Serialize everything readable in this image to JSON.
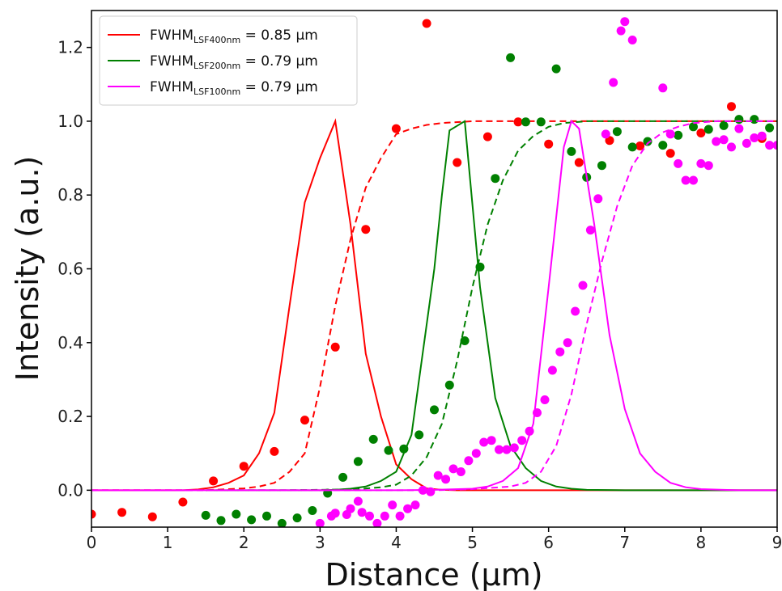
{
  "chart_data": {
    "type": "line",
    "xlabel": "Distance (µm)",
    "ylabel": "Intensity (a.u.)",
    "xlim": [
      0,
      9
    ],
    "ylim": [
      -0.1,
      1.3
    ],
    "xticks": [
      0,
      1,
      2,
      3,
      4,
      5,
      6,
      7,
      8,
      9
    ],
    "yticks": [
      0.0,
      0.2,
      0.4,
      0.6,
      0.8,
      1.0,
      1.2
    ],
    "ytick_labels": [
      "0.0",
      "0.2",
      "0.4",
      "0.6",
      "0.8",
      "1.0",
      "1.2"
    ],
    "grid": false,
    "legend_position": "top-left",
    "legend": [
      {
        "main": "FWHM",
        "sub": "LSF400nm",
        "value": " = 0.85 µm",
        "color": "#ff0000"
      },
      {
        "main": "FWHM",
        "sub": "LSF200nm",
        "value": " = 0.79 µm",
        "color": "#008000"
      },
      {
        "main": "FWHM",
        "sub": "LSF100nm",
        "value": " = 0.79 µm",
        "color": "#ff00ff"
      }
    ],
    "series": [
      {
        "name": "FWHM LSF400nm = 0.85 µm",
        "color": "#ff0000",
        "lsf": {
          "x": [
            0,
            0.2,
            0.4,
            0.6,
            0.8,
            1.0,
            1.2,
            1.4,
            1.6,
            1.8,
            2.0,
            2.2,
            2.4,
            2.6,
            2.8,
            3.0,
            3.2,
            3.4,
            3.6,
            3.8,
            4.0,
            4.2,
            4.4,
            4.6,
            4.8,
            5.0,
            5.5,
            6.0,
            6.5,
            7.0,
            8.0,
            9.0
          ],
          "y": [
            0,
            0,
            0,
            0,
            0,
            0,
            0,
            0.002,
            0.008,
            0.02,
            0.04,
            0.1,
            0.21,
            0.5,
            0.78,
            0.9,
            1.0,
            0.72,
            0.37,
            0.2,
            0.07,
            0.03,
            0.005,
            0.001,
            0,
            0,
            0,
            0,
            0,
            0,
            0,
            0
          ]
        },
        "esf": {
          "x": [
            0,
            0.5,
            1.0,
            1.5,
            1.8,
            2.0,
            2.2,
            2.4,
            2.6,
            2.8,
            3.0,
            3.2,
            3.4,
            3.6,
            3.8,
            4.0,
            4.2,
            4.4,
            4.6,
            5.0,
            6.0,
            7.0,
            8.0,
            9.0
          ],
          "y": [
            0,
            0,
            0,
            0,
            0.003,
            0.005,
            0.01,
            0.02,
            0.05,
            0.1,
            0.28,
            0.5,
            0.68,
            0.82,
            0.9,
            0.965,
            0.98,
            0.99,
            0.995,
            1.0,
            1.0,
            1.0,
            1.0,
            1.0
          ]
        },
        "points": {
          "x": [
            0.0,
            0.4,
            0.8,
            1.2,
            1.6,
            2.0,
            2.4,
            2.8,
            3.2,
            3.6,
            4.0,
            4.4,
            4.8,
            5.2,
            5.6,
            6.0,
            6.4,
            6.8,
            7.2,
            7.6,
            8.0,
            8.4,
            8.8
          ],
          "y": [
            -0.065,
            -0.06,
            -0.072,
            -0.032,
            0.025,
            0.065,
            0.105,
            0.19,
            0.388,
            0.707,
            0.98,
            1.265,
            0.888,
            0.958,
            0.998,
            0.938,
            0.888,
            0.948,
            0.933,
            0.913,
            0.968,
            1.04,
            0.953
          ]
        }
      },
      {
        "name": "FWHM LSF200nm = 0.79 µm",
        "color": "#008000",
        "lsf": {
          "x": [
            1.5,
            2.0,
            2.5,
            3.0,
            3.2,
            3.4,
            3.6,
            3.8,
            4.0,
            4.2,
            4.4,
            4.5,
            4.6,
            4.7,
            4.9,
            5.1,
            5.3,
            5.5,
            5.7,
            5.9,
            6.1,
            6.3,
            6.5,
            7.0,
            8.0,
            9.0
          ],
          "y": [
            0,
            0,
            0,
            0,
            0.001,
            0.004,
            0.01,
            0.025,
            0.05,
            0.15,
            0.45,
            0.6,
            0.8,
            0.975,
            1.0,
            0.55,
            0.25,
            0.12,
            0.06,
            0.025,
            0.01,
            0.004,
            0.001,
            0,
            0,
            0
          ]
        },
        "esf": {
          "x": [
            1.5,
            2.5,
            3.0,
            3.5,
            3.8,
            4.0,
            4.2,
            4.4,
            4.6,
            4.8,
            5.0,
            5.2,
            5.4,
            5.6,
            5.8,
            6.0,
            6.2,
            6.5,
            7.0,
            8.0,
            9.0
          ],
          "y": [
            0,
            0,
            0.001,
            0.003,
            0.008,
            0.015,
            0.04,
            0.09,
            0.18,
            0.35,
            0.55,
            0.72,
            0.84,
            0.92,
            0.96,
            0.985,
            0.995,
            1.0,
            1.0,
            1.0,
            1.0
          ]
        },
        "points": {
          "x": [
            1.5,
            1.7,
            1.9,
            2.1,
            2.3,
            2.5,
            2.7,
            2.9,
            3.1,
            3.3,
            3.5,
            3.7,
            3.9,
            4.1,
            4.3,
            4.5,
            4.7,
            4.9,
            5.1,
            5.3,
            5.5,
            5.7,
            5.9,
            6.1,
            6.3,
            6.5,
            6.7,
            6.9,
            7.1,
            7.3,
            7.5,
            7.7,
            7.9,
            8.1,
            8.3,
            8.5,
            8.7,
            8.9
          ],
          "y": [
            -0.068,
            -0.082,
            -0.065,
            -0.08,
            -0.07,
            -0.09,
            -0.075,
            -0.055,
            -0.008,
            0.035,
            0.078,
            0.138,
            0.108,
            0.112,
            0.15,
            0.218,
            0.285,
            0.405,
            0.605,
            0.845,
            1.172,
            0.998,
            0.998,
            1.142,
            0.918,
            0.848,
            0.88,
            0.972,
            0.93,
            0.945,
            0.935,
            0.962,
            0.985,
            0.978,
            0.988,
            1.005,
            1.005,
            0.982
          ]
        }
      },
      {
        "name": "FWHM LSF100nm = 0.79 µm",
        "color": "#ff00ff",
        "lsf": {
          "x": [
            0,
            3.0,
            4.0,
            4.5,
            5.0,
            5.2,
            5.4,
            5.6,
            5.8,
            6.0,
            6.2,
            6.3,
            6.4,
            6.6,
            6.8,
            7.0,
            7.2,
            7.4,
            7.6,
            7.8,
            8.0,
            8.5,
            9.0
          ],
          "y": [
            0,
            0,
            0,
            0.001,
            0.004,
            0.01,
            0.025,
            0.06,
            0.18,
            0.55,
            0.93,
            1.0,
            0.98,
            0.72,
            0.42,
            0.22,
            0.1,
            0.05,
            0.02,
            0.008,
            0.003,
            0,
            0
          ]
        },
        "esf": {
          "x": [
            0,
            4.5,
            5.0,
            5.5,
            5.7,
            5.9,
            6.1,
            6.3,
            6.5,
            6.7,
            6.9,
            7.1,
            7.3,
            7.5,
            7.7,
            7.9,
            8.2,
            8.5,
            9.0
          ],
          "y": [
            0,
            0,
            0.003,
            0.01,
            0.02,
            0.05,
            0.12,
            0.26,
            0.45,
            0.62,
            0.77,
            0.88,
            0.94,
            0.97,
            0.985,
            0.995,
            1.0,
            1.0,
            1.0
          ]
        },
        "points": {
          "x": [
            3.0,
            3.15,
            3.2,
            3.35,
            3.4,
            3.5,
            3.55,
            3.65,
            3.75,
            3.85,
            3.95,
            4.05,
            4.15,
            4.25,
            4.35,
            4.45,
            4.55,
            4.65,
            4.75,
            4.85,
            4.95,
            5.05,
            5.15,
            5.25,
            5.35,
            5.45,
            5.55,
            5.65,
            5.75,
            5.85,
            5.95,
            6.05,
            6.15,
            6.25,
            6.35,
            6.45,
            6.55,
            6.65,
            6.75,
            6.85,
            6.95,
            7.0,
            7.1,
            7.5,
            7.6,
            7.7,
            7.8,
            7.9,
            8.0,
            8.1,
            8.2,
            8.3,
            8.4,
            8.5,
            8.6,
            8.7,
            8.8,
            8.9,
            9.0
          ],
          "y": [
            -0.09,
            -0.07,
            -0.062,
            -0.066,
            -0.05,
            -0.03,
            -0.06,
            -0.07,
            -0.09,
            -0.07,
            -0.04,
            -0.07,
            -0.05,
            -0.04,
            0.0,
            -0.004,
            0.04,
            0.03,
            0.058,
            0.05,
            0.08,
            0.1,
            0.13,
            0.135,
            0.11,
            0.11,
            0.115,
            0.135,
            0.16,
            0.21,
            0.245,
            0.325,
            0.375,
            0.4,
            0.485,
            0.555,
            0.705,
            0.79,
            0.965,
            1.105,
            1.245,
            1.27,
            1.22,
            1.09,
            0.965,
            0.885,
            0.84,
            0.84,
            0.885,
            0.88,
            0.945,
            0.95,
            0.93,
            0.98,
            0.94,
            0.955,
            0.96,
            0.935,
            0.935
          ]
        }
      }
    ]
  }
}
